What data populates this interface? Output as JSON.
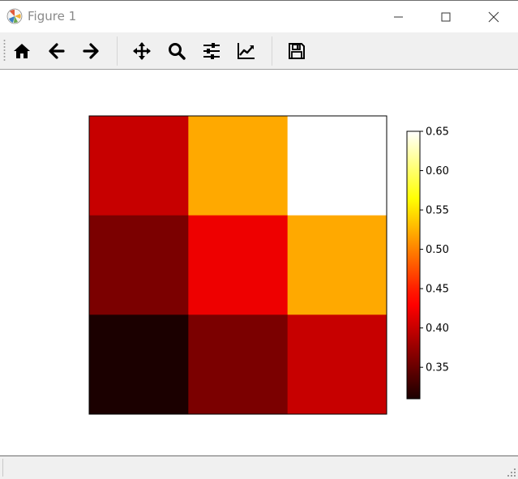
{
  "window": {
    "title": "Figure 1"
  },
  "toolbar": {
    "tools": [
      {
        "name": "home",
        "icon": "home-icon"
      },
      {
        "name": "back",
        "icon": "arrow-left-icon"
      },
      {
        "name": "forward",
        "icon": "arrow-right-icon"
      },
      {
        "name": "pan",
        "icon": "move-icon"
      },
      {
        "name": "zoom",
        "icon": "magnifier-icon"
      },
      {
        "name": "subplots",
        "icon": "sliders-icon"
      },
      {
        "name": "edit-axes",
        "icon": "line-chart-icon"
      },
      {
        "name": "save",
        "icon": "floppy-disk-icon"
      }
    ]
  },
  "chart_data": {
    "type": "heatmap",
    "colormap": "hot",
    "rows": 3,
    "cols": 3,
    "values": [
      [
        0.4,
        0.52,
        0.65
      ],
      [
        0.36,
        0.42,
        0.52
      ],
      [
        0.31,
        0.36,
        0.4
      ]
    ],
    "axes_ticks_visible": false,
    "colorbar": {
      "min": 0.31,
      "max": 0.65,
      "ticks": [
        0.35,
        0.4,
        0.45,
        0.5,
        0.55,
        0.6,
        0.65
      ],
      "tick_labels": [
        "0.35",
        "0.40",
        "0.45",
        "0.50",
        "0.55",
        "0.60",
        "0.65"
      ],
      "placement": "right"
    }
  }
}
